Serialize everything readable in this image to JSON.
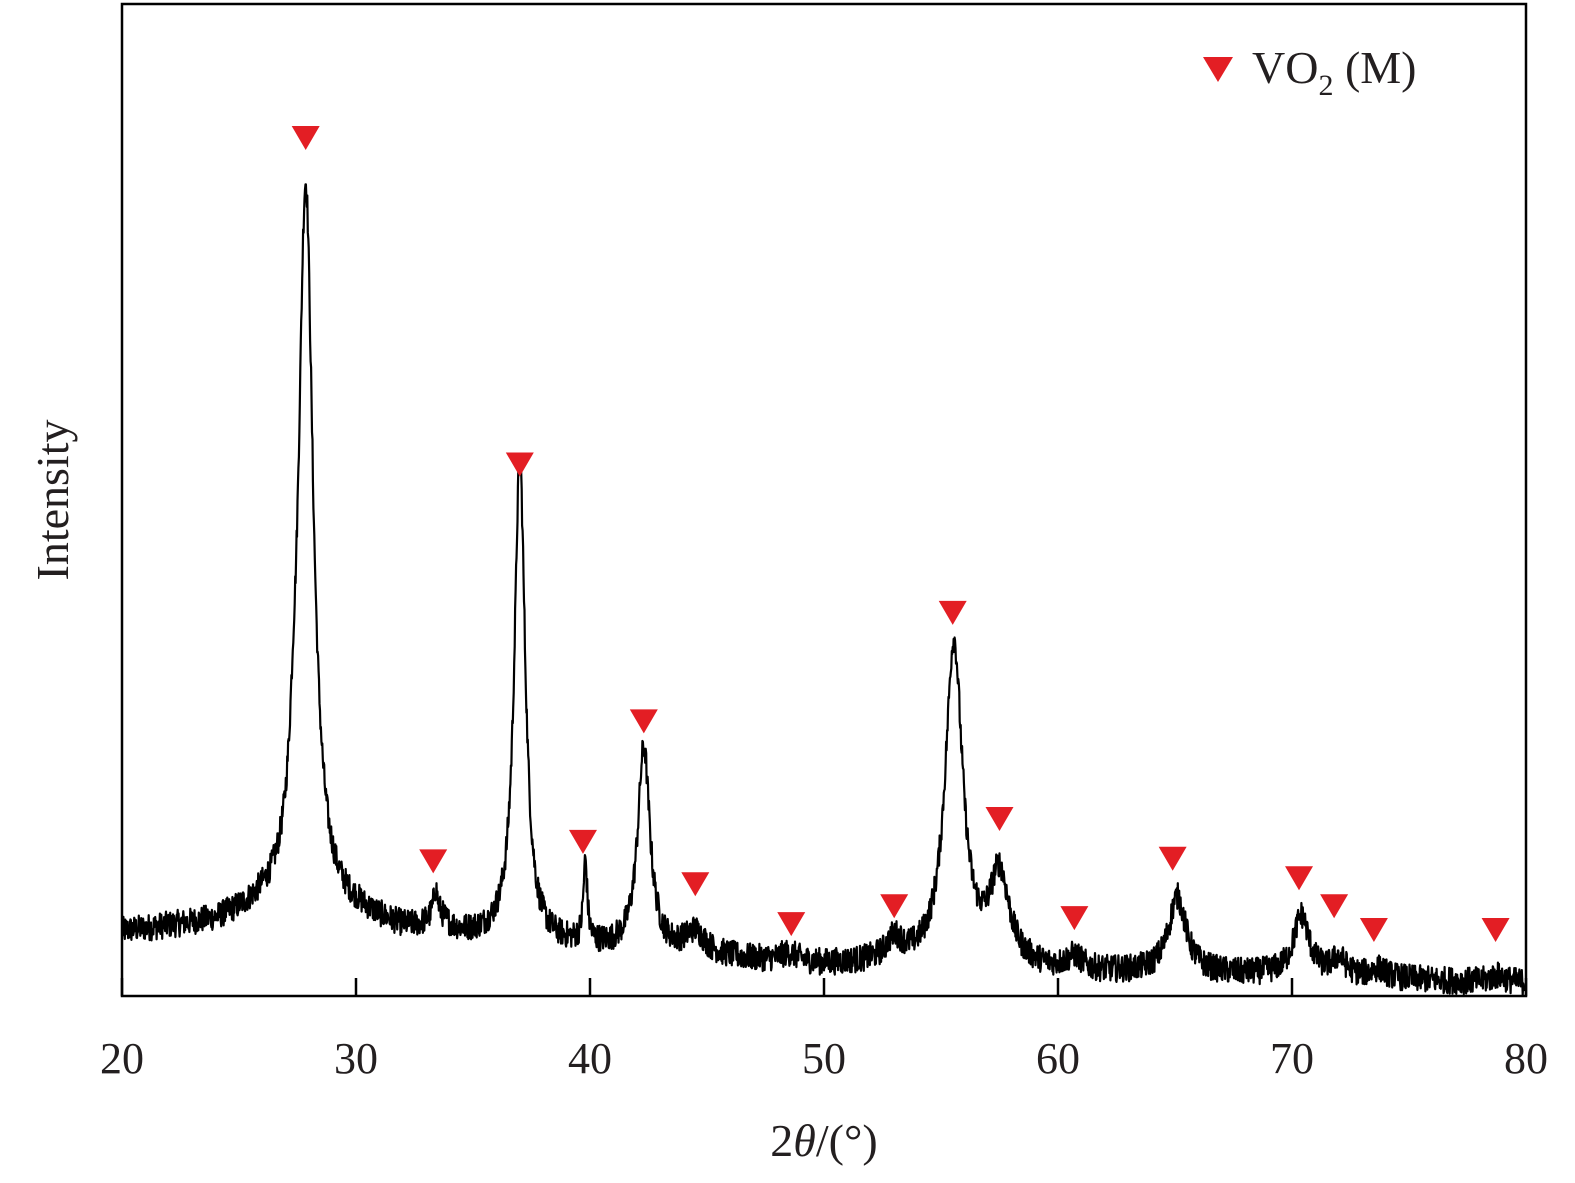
{
  "chart_data": {
    "type": "line",
    "title": "",
    "xlabel": "2θ/(°)",
    "xlabel_parts": {
      "prefix": "2",
      "theta": "θ",
      "suffix": "/(°)"
    },
    "ylabel": "Intensity",
    "xlim": [
      20,
      80
    ],
    "ylim": [
      0,
      100
    ],
    "xticks": [
      20,
      30,
      40,
      50,
      60,
      70,
      80
    ],
    "xtick_labels": [
      "20",
      "30",
      "40",
      "50",
      "60",
      "70",
      "80"
    ],
    "yticks_visible": false,
    "grid": false,
    "legend": {
      "placement": "top-right",
      "entries": [
        {
          "label": "VO2 (M)",
          "parts": {
            "main": "VO",
            "sub": "2",
            "rest": " (M)"
          },
          "marker": "down-triangle",
          "color": "#e31e24"
        }
      ]
    },
    "line_color": "#000000",
    "marker_color": "#e31e24",
    "baseline": [
      [
        20,
        7.5
      ],
      [
        24,
        8.5
      ],
      [
        26,
        10
      ],
      [
        30,
        9.2
      ],
      [
        32,
        7.5
      ],
      [
        34,
        6.8
      ],
      [
        36,
        6.5
      ],
      [
        38,
        5.8
      ],
      [
        40,
        5.5
      ],
      [
        42,
        5.0
      ],
      [
        44,
        4.8
      ],
      [
        46,
        4.3
      ],
      [
        48,
        3.8
      ],
      [
        50,
        3.5
      ],
      [
        52,
        3.6
      ],
      [
        54,
        3.5
      ],
      [
        56,
        3.3
      ],
      [
        58,
        3.0
      ],
      [
        60,
        2.8
      ],
      [
        62,
        2.6
      ],
      [
        64,
        2.6
      ],
      [
        66,
        2.5
      ],
      [
        68,
        2.4
      ],
      [
        70,
        2.4
      ],
      [
        72,
        2.2
      ],
      [
        74,
        2.0
      ],
      [
        76,
        1.8
      ],
      [
        78,
        1.6
      ],
      [
        80,
        1.5
      ]
    ],
    "peaks": [
      {
        "x": 27.3,
        "h": 4.0,
        "w": 0.15
      },
      {
        "x": 27.85,
        "h": 86.0,
        "w": 0.38
      },
      {
        "x": 33.4,
        "h": 3.0,
        "w": 0.1
      },
      {
        "x": 33.5,
        "h": 2.0,
        "w": 0.5
      },
      {
        "x": 37.0,
        "h": 57.0,
        "w": 0.28
      },
      {
        "x": 39.8,
        "h": 9.5,
        "w": 0.1
      },
      {
        "x": 42.3,
        "h": 24.0,
        "w": 0.32
      },
      {
        "x": 44.5,
        "h": 2.5,
        "w": 0.5
      },
      {
        "x": 48.5,
        "h": 1.0,
        "w": 0.5
      },
      {
        "x": 53.0,
        "h": 2.5,
        "w": 0.4
      },
      {
        "x": 55.55,
        "h": 38.0,
        "w": 0.45
      },
      {
        "x": 57.5,
        "h": 10.5,
        "w": 0.5
      },
      {
        "x": 60.7,
        "h": 1.5,
        "w": 0.4
      },
      {
        "x": 65.1,
        "h": 9.0,
        "w": 0.45
      },
      {
        "x": 70.4,
        "h": 7.0,
        "w": 0.4
      },
      {
        "x": 72.0,
        "h": 2.0,
        "w": 0.35
      },
      {
        "x": 73.7,
        "h": 1.0,
        "w": 0.4
      },
      {
        "x": 78.8,
        "h": 0.8,
        "w": 0.4
      }
    ],
    "markers": [
      {
        "x": 27.85,
        "y": 100.0
      },
      {
        "x": 33.3,
        "y": 14.7
      },
      {
        "x": 39.7,
        "y": 17.0
      },
      {
        "x": 37.0,
        "y": 61.5
      },
      {
        "x": 42.3,
        "y": 31.2
      },
      {
        "x": 44.5,
        "y": 12.0
      },
      {
        "x": 48.6,
        "y": 7.3
      },
      {
        "x": 53.0,
        "y": 9.4
      },
      {
        "x": 55.5,
        "y": 44.0
      },
      {
        "x": 57.5,
        "y": 19.7
      },
      {
        "x": 60.7,
        "y": 8.0
      },
      {
        "x": 64.9,
        "y": 15.0
      },
      {
        "x": 70.3,
        "y": 12.7
      },
      {
        "x": 71.8,
        "y": 9.4
      },
      {
        "x": 73.5,
        "y": 6.6
      },
      {
        "x": 78.7,
        "y": 6.6
      }
    ],
    "noise_amplitude": 1.6
  }
}
